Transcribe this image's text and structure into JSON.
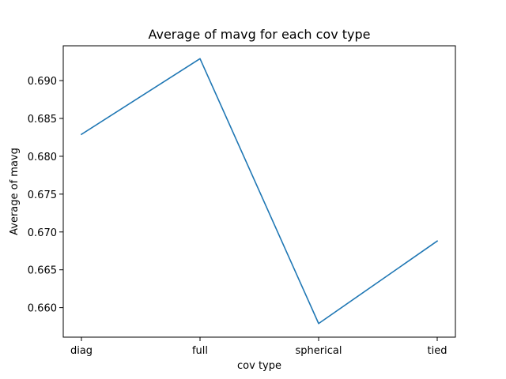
{
  "chart_data": {
    "type": "line",
    "title": "Average of mavg for each cov type",
    "xlabel": "cov type",
    "ylabel": "Average of mavg",
    "categories": [
      "diag",
      "full",
      "spherical",
      "tied"
    ],
    "series": [
      {
        "values": [
          0.6829,
          0.6929,
          0.6579,
          0.6688
        ]
      }
    ],
    "yticks": [
      "0.660",
      "0.665",
      "0.670",
      "0.675",
      "0.680",
      "0.685",
      "0.690"
    ],
    "ylim": [
      0.6561,
      0.6946
    ],
    "grid": false,
    "line_color": "#1f77b4"
  }
}
